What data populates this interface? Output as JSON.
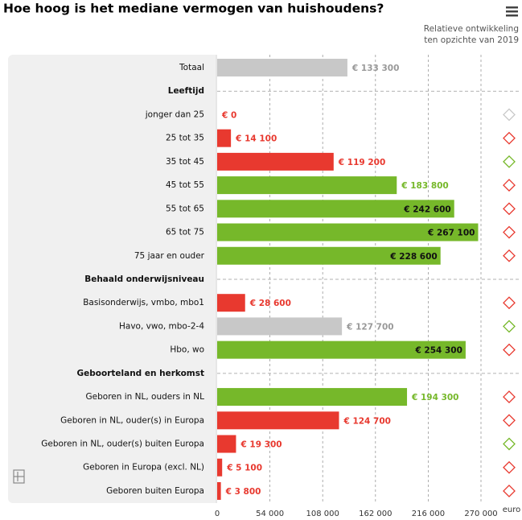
{
  "chart_data": {
    "type": "bar",
    "orientation": "horizontal",
    "title": "Hoe hoog is het mediane vermogen van huishoudens?",
    "subtitle": [
      "Relatieve ontwikkeling",
      "ten opzichte van 2019"
    ],
    "categories": [
      "Totaal",
      "Leeftijd",
      "jonger dan 25",
      "25 tot 35",
      "35 tot 45",
      "45 tot 55",
      "55 tot 65",
      "65 tot 75",
      "75 jaar en ouder",
      "Behaald onderwijsniveau",
      "Basisonderwijs, vmbo, mbo1",
      "Havo, vwo, mbo-2-4",
      "Hbo, wo",
      "Geboorteland en herkomst",
      "Geboren in NL, ouders in NL",
      "Geboren in NL, ouder(s) in Europa",
      "Geboren in NL, ouder(s) buiten Europa",
      "Geboren in Europa (excl. NL)",
      "Geboren buiten Europa"
    ],
    "values": [
      133300,
      null,
      0,
      14100,
      119200,
      183800,
      242600,
      267100,
      228600,
      null,
      28600,
      127700,
      254300,
      null,
      194300,
      124700,
      19300,
      5100,
      3800
    ],
    "value_labels": [
      "€ 133 300",
      null,
      "€ 0",
      "€ 14 100",
      "€ 119 200",
      "€ 183 800",
      "€ 242 600",
      "€ 267 100",
      "€ 228 600",
      null,
      "€ 28 600",
      "€ 127 700",
      "€ 254 300",
      null,
      "€ 194 300",
      "€ 124 700",
      "€ 19 300",
      "€ 5 100",
      "€ 3 800"
    ],
    "colors": [
      "#c8c8c8",
      null,
      "#e8392f",
      "#e8392f",
      "#e8392f",
      "#76b82a",
      "#76b82a",
      "#76b82a",
      "#76b82a",
      null,
      "#e8392f",
      "#c8c8c8",
      "#76b82a",
      null,
      "#76b82a",
      "#e8392f",
      "#e8392f",
      "#e8392f",
      "#e8392f"
    ],
    "trend_colors": [
      null,
      null,
      "#c8c8c8",
      "#e8392f",
      "#76b82a",
      "#e8392f",
      "#e8392f",
      "#e8392f",
      "#e8392f",
      null,
      "#e8392f",
      "#76b82a",
      "#e8392f",
      null,
      "#e8392f",
      "#e8392f",
      "#76b82a",
      "#e8392f",
      "#e8392f"
    ],
    "xlim": [
      0,
      270000
    ],
    "xticks": [
      0,
      {
        "value": 54000,
        "label": "54 000"
      },
      {
        "value": 108000,
        "label": "108 000"
      },
      {
        "value": 162000,
        "label": "162 000"
      },
      {
        "value": 216000,
        "label": "216 000"
      },
      {
        "value": 270000,
        "label": "270 000"
      }
    ],
    "x_unit": "euro",
    "grid": true
  }
}
